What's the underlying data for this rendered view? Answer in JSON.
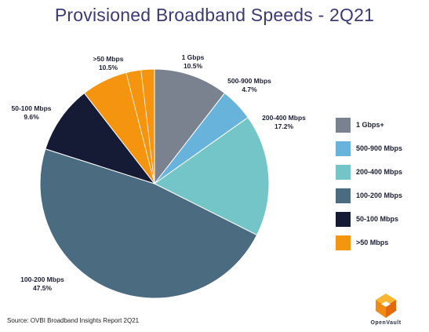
{
  "chart_data": {
    "type": "pie",
    "title": "Provisioned Broadband Speeds - 2Q21",
    "slices": [
      {
        "label": "1 Gbps",
        "legend": "1 Gbps+",
        "display_value": "10.5%",
        "value": 10.5,
        "color": "#7a8290"
      },
      {
        "label": "500-900 Mbps",
        "legend": "500-900 Mbps",
        "display_value": "4.7%",
        "value": 4.7,
        "color": "#67b3dc"
      },
      {
        "label": "200-400 Mbps",
        "legend": "200-400 Mbps",
        "display_value": "17.2%",
        "value": 17.2,
        "color": "#73c5c8"
      },
      {
        "label": "100-200 Mbps",
        "legend": "100-200 Mbps",
        "display_value": "47.5%",
        "value": 47.5,
        "color": "#4a6b80"
      },
      {
        "label": "50-100 Mbps",
        "legend": "50-100 Mbps",
        "display_value": "9.6%",
        "value": 9.6,
        "color": "#151b35"
      },
      {
        "label": ">50 Mbps",
        "legend": ">50 Mbps",
        "display_value": "10.5%",
        "value": 10.5,
        "color": "#f5950f"
      }
    ],
    "legend_position": "right"
  },
  "source": "Source: OVBI Broadband Insights Report 2Q21",
  "logo": {
    "text": "OpenVault",
    "icon": "openvault-logo-icon",
    "color": "#f5a623"
  }
}
